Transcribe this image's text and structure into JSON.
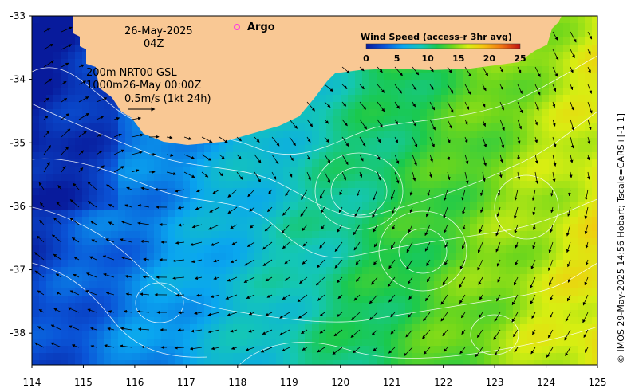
{
  "map": {
    "date_line": "26-May-2025",
    "time_line": "04Z",
    "depth_line_1": "200m  NRT00 GSL",
    "depth_line_2": "1000m26-May 00:00Z",
    "vector_scale_label": "0.5m/s (1kt 24h)",
    "argo_label": "Argo",
    "credit": "© IMOS 29-May-2025 14:56 Hobart; Tscale=CARS+[-1 1]",
    "lon_ticks": [
      "114",
      "115",
      "116",
      "117",
      "118",
      "119",
      "120",
      "121",
      "122",
      "123",
      "124",
      "125"
    ],
    "lat_ticks": [
      "-33",
      "-34",
      "-35",
      "-36",
      "-37",
      "-38"
    ],
    "lon_range": [
      114,
      125
    ],
    "lat_range": [
      -38.5,
      -33
    ],
    "land_color": "#f9c894",
    "argo_color": "#ff00ff"
  },
  "colorbar": {
    "title": "Wind Speed (access-r 3hr avg)",
    "ticks": [
      "0",
      "5",
      "10",
      "15",
      "20",
      "25"
    ],
    "range": [
      0,
      25
    ]
  }
}
